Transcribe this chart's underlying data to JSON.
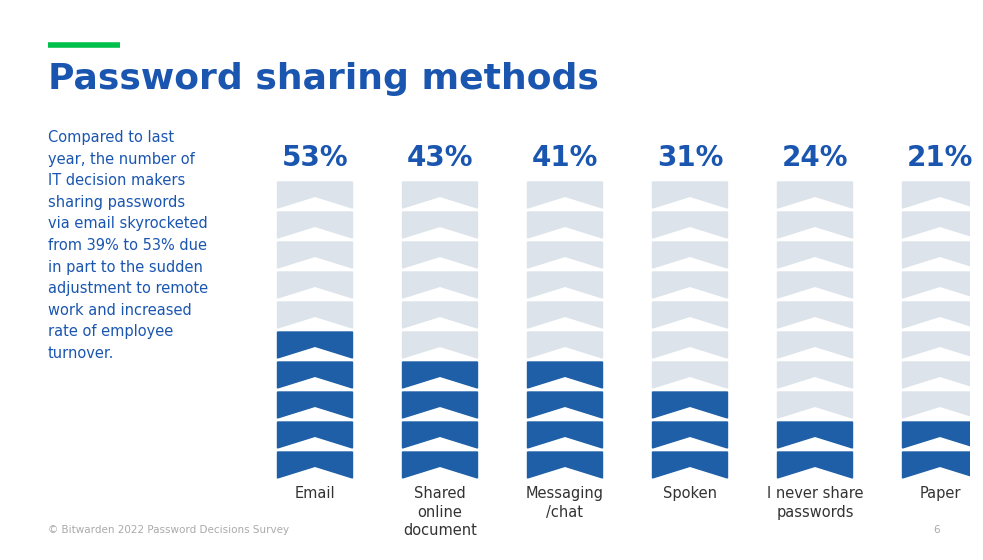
{
  "title": "Password sharing methods",
  "title_color": "#1a56b0",
  "accent_line_color": "#00c04b",
  "background_color": "#ffffff",
  "body_text": "Compared to last\nyear, the number of\nIT decision makers\nsharing passwords\nvia email skyrocketed\nfrom 39% to 53% due\nin part to the sudden\nadjustment to remote\nwork and increased\nrate of employee\nturnover.",
  "body_text_color": "#1a56b0",
  "footer_text": "© Bitwarden 2022 Password Decisions Survey",
  "footer_page": "6",
  "categories": [
    "Email",
    "Shared\nonline\ndocument",
    "Messaging\n/chat",
    "Spoken",
    "I never share\npasswords",
    "Paper"
  ],
  "values": [
    53,
    43,
    41,
    31,
    24,
    21
  ],
  "pct_labels": [
    "53%",
    "43%",
    "41%",
    "31%",
    "24%",
    "21%"
  ],
  "n_filled": [
    5,
    4,
    4,
    3,
    2,
    2
  ],
  "total_chevrons": 10,
  "chevron_color_filled": "#1e5fa8",
  "chevron_color_empty": "#dce3ea",
  "label_color": "#1a56b0",
  "category_color": "#333333",
  "pct_fontsize": 20,
  "cat_fontsize": 10.5,
  "footer_color": "#aaaaaa"
}
